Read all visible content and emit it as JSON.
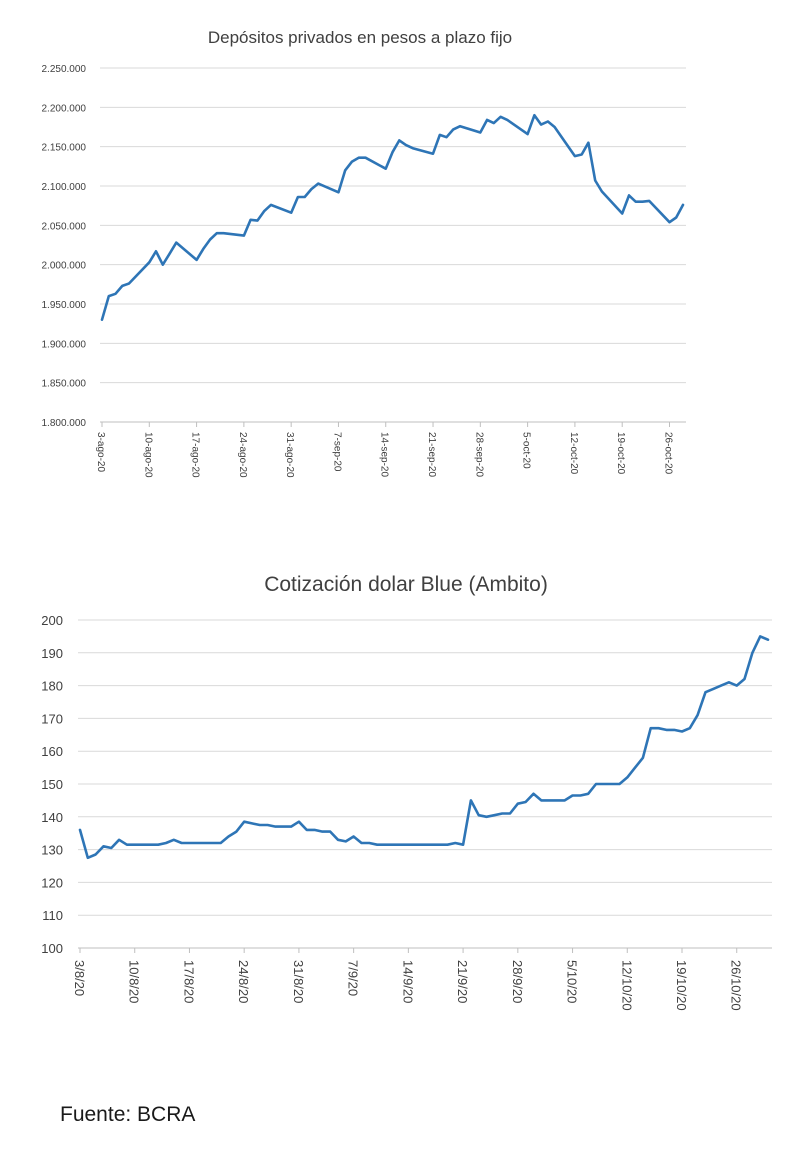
{
  "chart_data": [
    {
      "type": "line",
      "title": "Depósitos privados en pesos a plazo fijo",
      "ylim": [
        1800000,
        2250000
      ],
      "y_ticks": [
        "1.800.000",
        "1.850.000",
        "1.900.000",
        "1.950.000",
        "2.000.000",
        "2.050.000",
        "2.100.000",
        "2.150.000",
        "2.200.000",
        "2.250.000"
      ],
      "y_tick_values": [
        1800000,
        1850000,
        1900000,
        1950000,
        2000000,
        2050000,
        2100000,
        2150000,
        2200000,
        2250000
      ],
      "x_ticks": [
        "3-ago-20",
        "10-ago-20",
        "17-ago-20",
        "24-ago-20",
        "31-ago-20",
        "7-sep-20",
        "14-sep-20",
        "21-sep-20",
        "28-sep-20",
        "5-oct-20",
        "12-oct-20",
        "19-oct-20",
        "26-oct-20"
      ],
      "grid": true,
      "series": [
        {
          "color": "#2e75b6",
          "x": [
            0,
            1,
            2,
            3,
            4,
            7,
            8,
            9,
            10,
            11,
            14,
            15,
            16,
            17,
            18,
            21,
            22,
            23,
            24,
            25,
            28,
            29,
            30,
            31,
            32,
            35,
            36,
            37,
            38,
            39,
            42,
            43,
            44,
            45,
            46,
            49,
            50,
            51,
            52,
            53,
            56,
            57,
            58,
            59,
            60,
            63,
            64,
            65,
            66,
            67,
            70,
            71,
            72,
            73,
            74,
            77,
            78,
            79,
            80,
            81,
            84,
            85,
            86
          ],
          "values": [
            1930000,
            1960000,
            1963000,
            1973000,
            1976000,
            2003000,
            2017000,
            2000000,
            2014000,
            2028000,
            2006000,
            2020000,
            2032000,
            2040000,
            2040000,
            2037000,
            2057000,
            2056000,
            2068000,
            2076000,
            2066000,
            2086000,
            2086000,
            2096000,
            2103000,
            2092000,
            2120000,
            2131000,
            2136000,
            2136000,
            2122000,
            2143000,
            2158000,
            2152000,
            2148000,
            2141000,
            2165000,
            2162000,
            2172000,
            2176000,
            2168000,
            2184000,
            2180000,
            2188000,
            2184000,
            2166000,
            2190000,
            2178000,
            2182000,
            2175000,
            2138000,
            2140000,
            2155000,
            2107000,
            2093000,
            2065000,
            2088000,
            2080000,
            2080000,
            2081000,
            2054000,
            2060000,
            2076000
          ]
        }
      ]
    },
    {
      "type": "line",
      "title": "Cotización dolar Blue (Ambito)",
      "ylim": [
        100,
        200
      ],
      "y_ticks": [
        "100",
        "110",
        "120",
        "130",
        "140",
        "150",
        "160",
        "170",
        "180",
        "190",
        "200"
      ],
      "y_tick_values": [
        100,
        110,
        120,
        130,
        140,
        150,
        160,
        170,
        180,
        190,
        200
      ],
      "x_ticks": [
        "3/8/20",
        "10/8/20",
        "17/8/20",
        "24/8/20",
        "31/8/20",
        "7/9/20",
        "14/9/20",
        "21/9/20",
        "28/9/20",
        "5/10/20",
        "12/10/20",
        "19/10/20",
        "26/10/20"
      ],
      "grid": true,
      "series": [
        {
          "color": "#2e75b6",
          "x": [
            0,
            1,
            2,
            3,
            4,
            5,
            6,
            7,
            8,
            9,
            10,
            11,
            12,
            13,
            14,
            15,
            16,
            17,
            18,
            19,
            20,
            21,
            22,
            23,
            24,
            25,
            26,
            27,
            28,
            29,
            30,
            31,
            32,
            33,
            34,
            35,
            36,
            37,
            38,
            39,
            40,
            41,
            42,
            43,
            44,
            45,
            46,
            47,
            48,
            49,
            50,
            51,
            52,
            53,
            54,
            55,
            56,
            57,
            58,
            59,
            60,
            61,
            62,
            63,
            64,
            65,
            66,
            67,
            68,
            69,
            70,
            71,
            72,
            73,
            74,
            75,
            76,
            77,
            78,
            79,
            80,
            81,
            82,
            83,
            84,
            85,
            86,
            87,
            88
          ],
          "values": [
            136,
            127.5,
            128.5,
            131,
            130.5,
            133,
            131.5,
            131.5,
            131.5,
            131.5,
            131.5,
            132,
            133,
            132,
            132,
            132,
            132,
            132,
            132,
            134,
            135.5,
            138.5,
            138,
            137.5,
            137.5,
            137,
            137,
            137,
            138.5,
            136,
            136,
            135.5,
            135.5,
            133,
            132.5,
            134,
            132,
            132,
            131.5,
            131.5,
            131.5,
            131.5,
            131.5,
            131.5,
            131.5,
            131.5,
            131.5,
            131.5,
            132,
            131.5,
            145,
            140.5,
            140,
            140.5,
            141,
            141,
            144,
            144.5,
            147,
            145,
            145,
            145,
            145,
            146.5,
            146.5,
            147,
            150,
            150,
            150,
            150,
            152,
            155,
            158,
            167,
            167,
            166.5,
            166.5,
            166,
            167,
            171,
            178,
            179,
            180,
            181,
            180,
            182,
            190,
            195,
            194
          ]
        }
      ]
    }
  ],
  "source": "Fuente: BCRA"
}
